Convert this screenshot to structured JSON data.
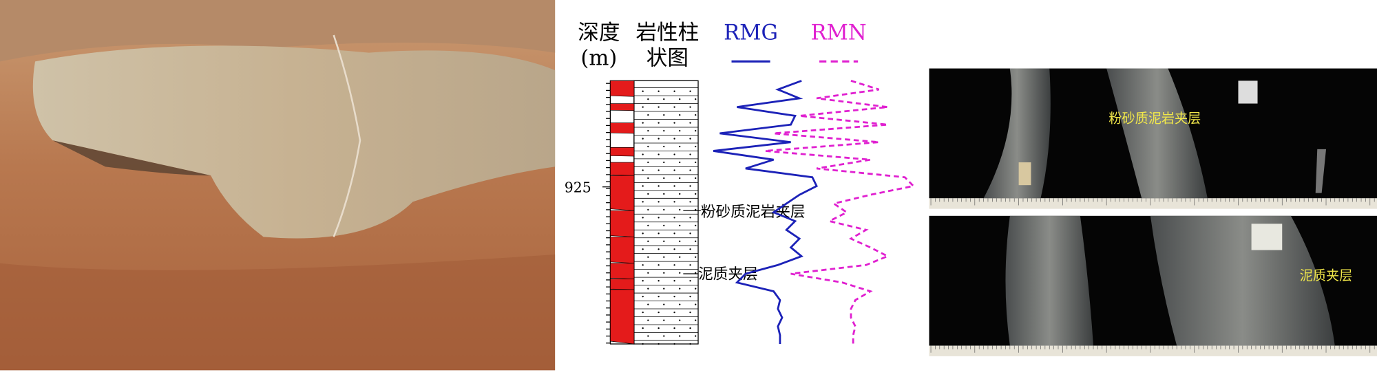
{
  "log": {
    "depth_header": "深度",
    "depth_unit": "(m)",
    "lithology_header_line1": "岩性柱",
    "lithology_header_line2": "状图",
    "depth_tick": "925",
    "curves": [
      {
        "name": "RMG",
        "color": "#1c22b8",
        "dashed": false,
        "values": [
          46,
          35,
          45,
          16,
          43,
          41,
          8,
          41,
          5,
          33,
          20,
          51,
          53,
          45,
          39,
          33,
          43,
          39,
          45,
          41,
          46,
          35,
          20,
          16,
          33,
          36,
          35,
          37,
          35,
          36,
          36
        ]
      },
      {
        "name": "RMN",
        "color": "#e020d0",
        "dashed": true,
        "values": [
          69,
          82,
          53,
          86,
          45,
          86,
          33,
          82,
          29,
          78,
          53,
          94,
          98,
          78,
          61,
          67,
          59,
          76,
          69,
          78,
          86,
          76,
          41,
          65,
          78,
          71,
          69,
          69,
          71,
          70,
          70
        ]
      }
    ],
    "annotations": [
      "粉砂质泥岩夹层",
      "泥质夹层"
    ]
  },
  "core_images": {
    "labels": [
      "粉砂质泥岩夹层",
      "泥质夹层"
    ]
  }
}
